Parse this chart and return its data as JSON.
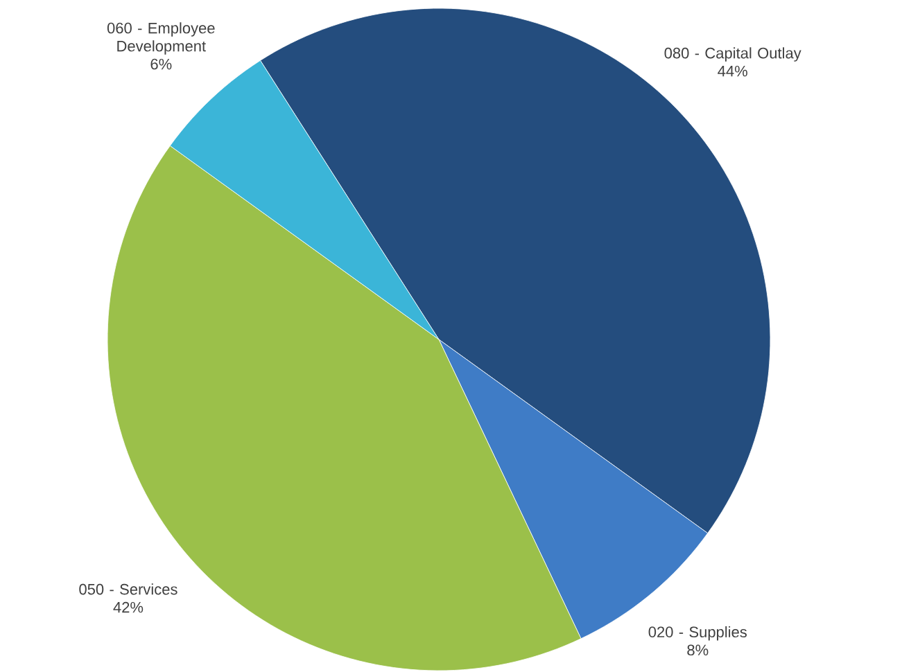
{
  "chart_data": {
    "type": "pie",
    "categories": [
      "080 - Capital Outlay",
      "020 - Supplies",
      "050 - Services",
      "060 - Employee Development"
    ],
    "values": [
      44,
      8,
      42,
      6
    ],
    "value_labels": [
      "44%",
      "8%",
      "42%",
      "6%"
    ],
    "colors": [
      "#244d7e",
      "#3f7cc6",
      "#9bc04a",
      "#3bb5d8"
    ]
  }
}
